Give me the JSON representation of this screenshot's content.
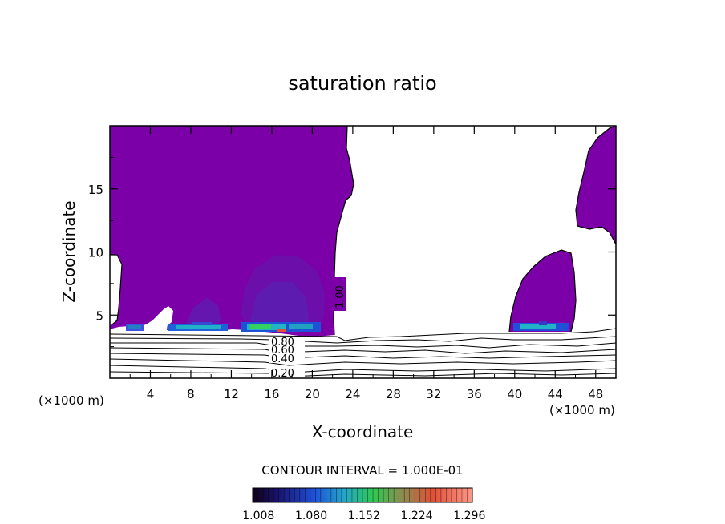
{
  "chart_data": {
    "type": "contour",
    "title": "saturation ratio",
    "xlabel": "X-coordinate",
    "ylabel": "Z-coordinate",
    "x_unit_left": "(×1000 m)",
    "x_unit_right": "(×1000 m)",
    "xlim": [
      0,
      50
    ],
    "ylim": [
      0,
      20
    ],
    "x_ticks": [
      4,
      8,
      12,
      16,
      20,
      24,
      28,
      32,
      36,
      40,
      44,
      48
    ],
    "y_ticks": [
      5,
      10,
      15
    ],
    "contour_interval_text": "CONTOUR INTERVAL = 1.000E-01",
    "contour_labels": [
      "1.00",
      "0.80",
      "0.60",
      "0.40",
      "0.20"
    ],
    "colorbar_ticks": [
      "1.008",
      "1.080",
      "1.152",
      "1.224",
      "1.296"
    ],
    "colorbar_range": [
      1.0,
      1.3
    ],
    "regions": [
      {
        "name": "supersaturated-region-left",
        "value": 1.008
      },
      {
        "name": "supersaturated-region-right",
        "value": 1.008
      }
    ],
    "colors": {
      "fill": "#7c00a8",
      "fill_dark": "#6a0aa6",
      "contour_line": "#000000"
    }
  }
}
